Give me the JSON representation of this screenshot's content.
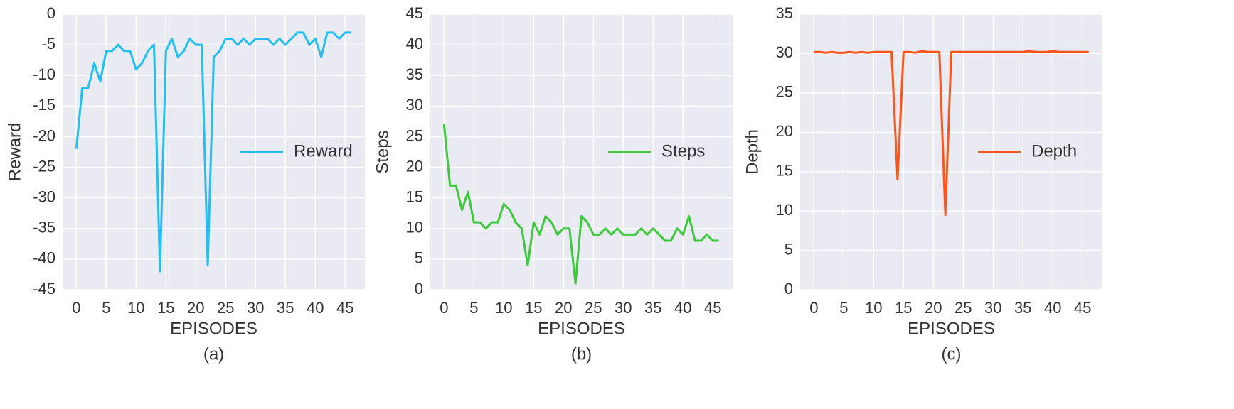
{
  "chart_data": [
    {
      "type": "line",
      "caption": "(a)",
      "xlabel": "EPISODES",
      "ylabel": "Reward",
      "x": [
        0,
        1,
        2,
        3,
        4,
        5,
        6,
        7,
        8,
        9,
        10,
        11,
        12,
        13,
        14,
        15,
        16,
        17,
        18,
        19,
        20,
        21,
        22,
        23,
        24,
        25,
        26,
        27,
        28,
        29,
        30,
        31,
        32,
        33,
        34,
        35,
        36,
        37,
        38,
        39,
        40,
        41,
        42,
        43,
        44,
        45,
        46
      ],
      "series": [
        {
          "name": "Reward",
          "color": "#22bff2",
          "values": [
            -22,
            -12,
            -12,
            -8,
            -11,
            -6,
            -6,
            -5,
            -6,
            -6,
            -9,
            -8,
            -6,
            -5,
            -42,
            -6,
            -4,
            -7,
            -6,
            -4,
            -5,
            -5,
            -41,
            -7,
            -6,
            -4,
            -4,
            -5,
            -4,
            -5,
            -4,
            -4,
            -4,
            -5,
            -4,
            -5,
            -4,
            -3,
            -3,
            -5,
            -4,
            -7,
            -3,
            -3,
            -4,
            -3,
            -3
          ]
        }
      ],
      "xlim": [
        -2.3,
        48.3
      ],
      "xticks": [
        0,
        5,
        10,
        15,
        20,
        25,
        30,
        35,
        40,
        45
      ],
      "ylim": [
        -45,
        0
      ],
      "yticks": [
        -45,
        -40,
        -35,
        -30,
        -25,
        -20,
        -15,
        -10,
        -5,
        0
      ],
      "grid": true,
      "legend": "center right"
    },
    {
      "type": "line",
      "caption": "(b)",
      "xlabel": "EPISODES",
      "ylabel": "Steps",
      "x": [
        0,
        1,
        2,
        3,
        4,
        5,
        6,
        7,
        8,
        9,
        10,
        11,
        12,
        13,
        14,
        15,
        16,
        17,
        18,
        19,
        20,
        21,
        22,
        23,
        24,
        25,
        26,
        27,
        28,
        29,
        30,
        31,
        32,
        33,
        34,
        35,
        36,
        37,
        38,
        39,
        40,
        41,
        42,
        43,
        44,
        45,
        46
      ],
      "series": [
        {
          "name": "Steps",
          "color": "#3cc93c",
          "values": [
            27,
            17,
            17,
            13,
            16,
            11,
            11,
            10,
            11,
            11,
            14,
            13,
            11,
            10,
            4,
            11,
            9,
            12,
            11,
            9,
            10,
            10,
            1,
            12,
            11,
            9,
            9,
            10,
            9,
            10,
            9,
            9,
            9,
            10,
            9,
            10,
            9,
            8,
            8,
            10,
            9,
            12,
            8,
            8,
            9,
            8,
            8
          ]
        }
      ],
      "xlim": [
        -2.3,
        48.3
      ],
      "xticks": [
        0,
        5,
        10,
        15,
        20,
        25,
        30,
        35,
        40,
        45
      ],
      "ylim": [
        0,
        45
      ],
      "yticks": [
        0,
        5,
        10,
        15,
        20,
        25,
        30,
        35,
        40,
        45
      ],
      "grid": true,
      "legend": "center right"
    },
    {
      "type": "line",
      "caption": "(c)",
      "xlabel": "EPISODES",
      "ylabel": "Depth",
      "x": [
        0,
        1,
        2,
        3,
        4,
        5,
        6,
        7,
        8,
        9,
        10,
        11,
        12,
        13,
        14,
        15,
        16,
        17,
        18,
        19,
        20,
        21,
        22,
        23,
        24,
        25,
        26,
        27,
        28,
        29,
        30,
        31,
        32,
        33,
        34,
        35,
        36,
        37,
        38,
        39,
        40,
        41,
        42,
        43,
        44,
        45,
        46
      ],
      "series": [
        {
          "name": "Depth",
          "color": "#ff5419",
          "values": [
            30.2,
            30.2,
            30.1,
            30.2,
            30.1,
            30.1,
            30.2,
            30.1,
            30.2,
            30.1,
            30.2,
            30.2,
            30.2,
            30.2,
            14,
            30.2,
            30.2,
            30.1,
            30.3,
            30.2,
            30.2,
            30.2,
            9.5,
            30.2,
            30.2,
            30.2,
            30.2,
            30.2,
            30.2,
            30.2,
            30.2,
            30.2,
            30.2,
            30.2,
            30.2,
            30.2,
            30.3,
            30.2,
            30.2,
            30.2,
            30.3,
            30.2,
            30.2,
            30.2,
            30.2,
            30.2,
            30.2
          ]
        }
      ],
      "xlim": [
        -2.3,
        48.3
      ],
      "xticks": [
        0,
        5,
        10,
        15,
        20,
        25,
        30,
        35,
        40,
        45
      ],
      "ylim": [
        0,
        35
      ],
      "yticks": [
        0,
        5,
        10,
        15,
        20,
        25,
        30,
        35
      ],
      "grid": true,
      "legend": "center right"
    }
  ]
}
